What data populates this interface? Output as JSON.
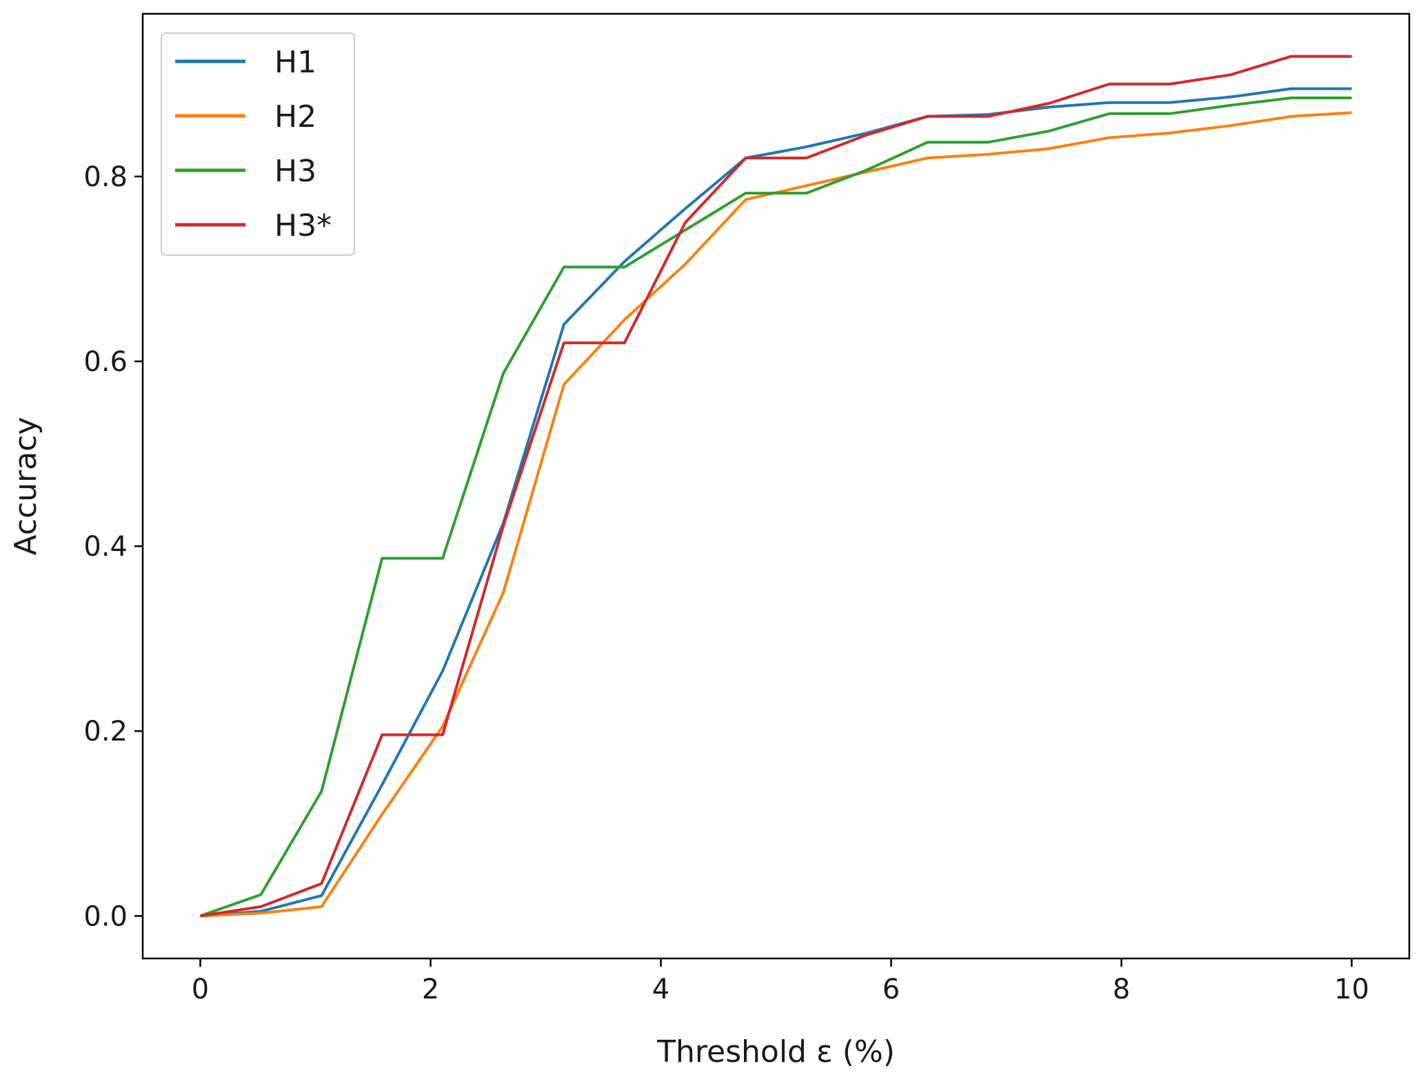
{
  "chart_data": {
    "type": "line",
    "title": "",
    "xlabel": "Threshold ε (%)",
    "ylabel": "Accuracy",
    "xlim": [
      -0.5,
      10.5
    ],
    "ylim": [
      -0.046,
      0.976
    ],
    "grid": false,
    "legend_position": "top-left",
    "xticks": [
      0,
      2,
      4,
      6,
      8,
      10
    ],
    "xtick_labels": [
      "0",
      "2",
      "4",
      "6",
      "8",
      "10"
    ],
    "yticks": [
      0.0,
      0.2,
      0.4,
      0.6,
      0.8
    ],
    "ytick_labels": [
      "0.0",
      "0.2",
      "0.4",
      "0.6",
      "0.8"
    ],
    "x": [
      0,
      0.526,
      1.053,
      1.579,
      2.105,
      2.632,
      3.158,
      3.684,
      4.211,
      4.737,
      5.263,
      5.789,
      6.316,
      6.842,
      7.368,
      7.895,
      8.421,
      8.947,
      9.474,
      10.0
    ],
    "series": [
      {
        "name": "H1",
        "color": "#1f77b4",
        "values": [
          0.0,
          0.005,
          0.022,
          0.142,
          0.265,
          0.425,
          0.64,
          0.708,
          0.765,
          0.82,
          0.832,
          0.847,
          0.865,
          0.867,
          0.875,
          0.88,
          0.88,
          0.886,
          0.895,
          0.895
        ]
      },
      {
        "name": "H2",
        "color": "#ff7f0e",
        "values": [
          0.0,
          0.003,
          0.01,
          0.11,
          0.205,
          0.35,
          0.575,
          0.645,
          0.705,
          0.775,
          0.79,
          0.805,
          0.82,
          0.824,
          0.83,
          0.842,
          0.847,
          0.855,
          0.865,
          0.869
        ]
      },
      {
        "name": "H3",
        "color": "#2ca02c",
        "values": [
          0.0,
          0.023,
          0.135,
          0.387,
          0.387,
          0.587,
          0.702,
          0.702,
          0.742,
          0.782,
          0.782,
          0.807,
          0.837,
          0.837,
          0.849,
          0.868,
          0.868,
          0.877,
          0.885,
          0.885
        ]
      },
      {
        "name": "H3*",
        "color": "#d62728",
        "values": [
          0.0,
          0.01,
          0.035,
          0.196,
          0.196,
          0.422,
          0.62,
          0.62,
          0.75,
          0.82,
          0.82,
          0.845,
          0.865,
          0.865,
          0.879,
          0.9,
          0.9,
          0.91,
          0.93,
          0.93
        ]
      }
    ]
  }
}
